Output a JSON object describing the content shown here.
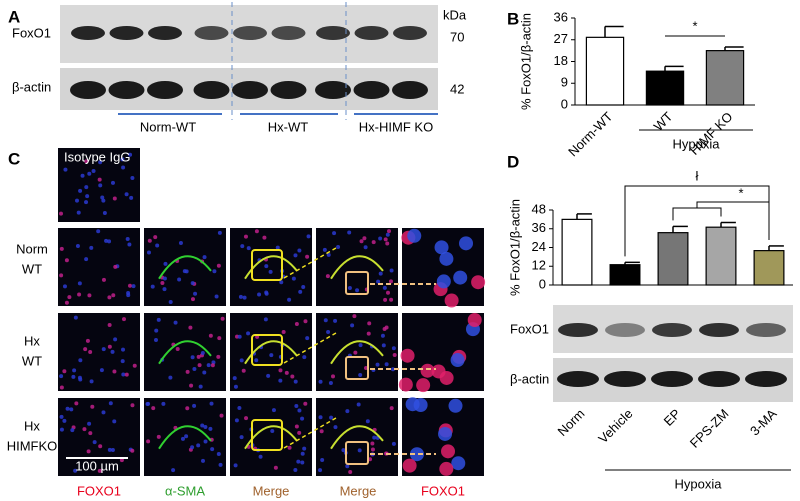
{
  "figure": {
    "panel_labels": [
      "A",
      "B",
      "C",
      "D"
    ],
    "blot_a": {
      "labels": [
        "FoxO1",
        "β-actin"
      ],
      "unit": "kDa",
      "sizes": [
        "70",
        "42"
      ],
      "groups": [
        "Norm-WT",
        "Hx-WT",
        "Hx-HIMF KO"
      ]
    },
    "panel_c": {
      "isotype": "Isotype IgG",
      "rows": [
        [
          "Norm",
          "WT"
        ],
        [
          "Hx",
          "WT"
        ],
        [
          "Hx",
          "HIMFKO"
        ]
      ],
      "scale": "100 µm",
      "columns": [
        "FOXO1",
        "α-SMA",
        "Merge",
        "Merge",
        "FOXO1"
      ]
    },
    "blot_d": [
      "FoxO1",
      "β-actin"
    ]
  },
  "chart_data": [
    {
      "type": "bar",
      "y_label": "% FoxO1/β-actin",
      "categories": [
        "Norm-WT",
        "WT",
        "HIMF KO"
      ],
      "values": [
        28,
        14,
        22.5
      ],
      "errors": [
        4.5,
        2,
        1.5
      ],
      "colors": [
        "#ffffff",
        "#000000",
        "#808080"
      ],
      "ylim": [
        0,
        36
      ],
      "yticks": [
        0,
        9,
        18,
        27,
        36
      ],
      "group_label": "Hypoxia",
      "annotations": [
        "*"
      ]
    },
    {
      "type": "bar",
      "y_label": "% FoxO1/β-actin",
      "categories": [
        "Norm",
        "Vehicle",
        "EP",
        "FPS-ZM",
        "3-MA"
      ],
      "values": [
        42,
        13,
        33.5,
        37,
        22
      ],
      "errors": [
        3.5,
        1.5,
        4,
        3,
        3
      ],
      "colors": [
        "#ffffff",
        "#000000",
        "#767676",
        "#a6a6a6",
        "#a0985a"
      ],
      "ylim": [
        0,
        48
      ],
      "yticks": [
        0,
        12,
        24,
        36,
        48
      ],
      "group_label": "Hypoxia",
      "annotations": [
        "ł",
        "*"
      ]
    }
  ]
}
